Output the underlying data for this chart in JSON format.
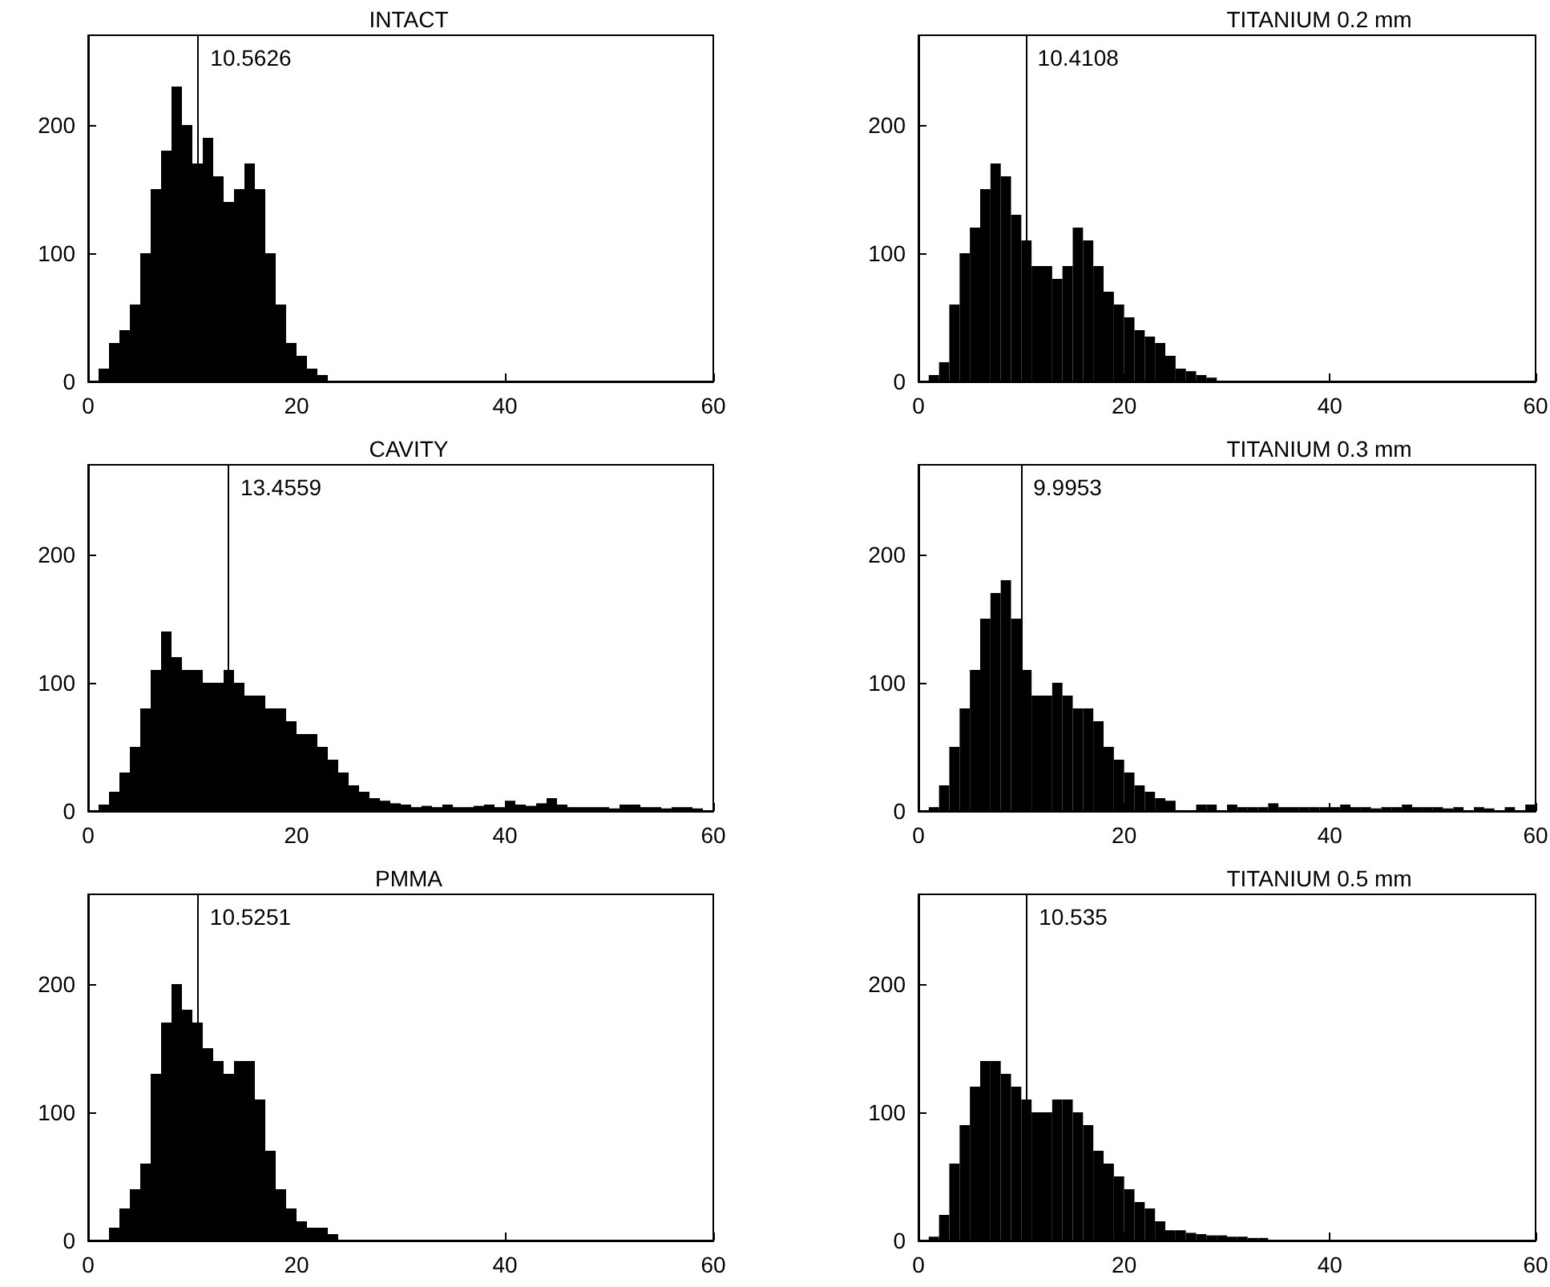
{
  "chart_data": [
    {
      "type": "histogram",
      "title": "INTACT",
      "bins": [
        0,
        1,
        2,
        3,
        4,
        5,
        6,
        7,
        8,
        9,
        10,
        11,
        12,
        13,
        14,
        15,
        16,
        17,
        18,
        19,
        20,
        21,
        22,
        23,
        24,
        25,
        26,
        27,
        28,
        29,
        30,
        31,
        32,
        33,
        34,
        35,
        36,
        37,
        38,
        39,
        40,
        41,
        42,
        43,
        44,
        45,
        46,
        47,
        48,
        49,
        50,
        51,
        52,
        53,
        54,
        55,
        56,
        57,
        58,
        59,
        60
      ],
      "values": [
        0,
        10,
        30,
        40,
        60,
        100,
        150,
        180,
        230,
        200,
        170,
        190,
        160,
        140,
        150,
        170,
        150,
        100,
        60,
        30,
        20,
        10,
        5,
        0,
        0,
        0,
        0,
        0,
        0,
        0,
        0,
        0,
        0,
        0,
        0,
        0,
        0,
        0,
        0,
        0,
        0,
        0,
        0,
        0,
        0,
        0,
        0,
        0,
        0,
        0,
        0,
        0,
        0,
        0,
        0,
        0,
        0,
        0,
        0,
        0
      ],
      "color": "#000000",
      "xlim": [
        0,
        60
      ],
      "xticks": [
        0,
        20,
        40,
        60
      ],
      "ylim": [
        0,
        270
      ],
      "yticks": [
        0,
        100,
        200
      ],
      "grid": false,
      "ref_lines": [
        {
          "axis": "x",
          "value": 10.5626,
          "label": "10.5626"
        }
      ]
    },
    {
      "type": "histogram",
      "title": "TITANIUM 0.2 mm",
      "bins": [
        0,
        1,
        2,
        3,
        4,
        5,
        6,
        7,
        8,
        9,
        10,
        11,
        12,
        13,
        14,
        15,
        16,
        17,
        18,
        19,
        20,
        21,
        22,
        23,
        24,
        25,
        26,
        27,
        28,
        29,
        30,
        31,
        32,
        33,
        34,
        35,
        36,
        37,
        38,
        39,
        40,
        41,
        42,
        43,
        44,
        45,
        46,
        47,
        48,
        49,
        50,
        51,
        52,
        53,
        54,
        55,
        56,
        57,
        58,
        59,
        60
      ],
      "values": [
        0,
        5,
        15,
        60,
        100,
        120,
        150,
        170,
        160,
        130,
        110,
        90,
        90,
        80,
        90,
        120,
        110,
        90,
        70,
        60,
        50,
        40,
        35,
        30,
        20,
        10,
        8,
        5,
        3,
        0,
        0,
        0,
        0,
        0,
        0,
        0,
        0,
        0,
        0,
        0,
        0,
        0,
        0,
        0,
        0,
        0,
        0,
        0,
        0,
        0,
        0,
        0,
        0,
        0,
        0,
        0,
        0,
        0,
        0,
        0
      ],
      "color": "#000000",
      "xlim": [
        0,
        60
      ],
      "xticks": [
        0,
        20,
        40,
        60
      ],
      "ylim": [
        0,
        270
      ],
      "yticks": [
        0,
        100,
        200
      ],
      "grid": false,
      "ref_lines": [
        {
          "axis": "x",
          "value": 10.4108,
          "label": "10.4108"
        }
      ]
    },
    {
      "type": "histogram",
      "title": "CAVITY",
      "bins": [
        0,
        1,
        2,
        3,
        4,
        5,
        6,
        7,
        8,
        9,
        10,
        11,
        12,
        13,
        14,
        15,
        16,
        17,
        18,
        19,
        20,
        21,
        22,
        23,
        24,
        25,
        26,
        27,
        28,
        29,
        30,
        31,
        32,
        33,
        34,
        35,
        36,
        37,
        38,
        39,
        40,
        41,
        42,
        43,
        44,
        45,
        46,
        47,
        48,
        49,
        50,
        51,
        52,
        53,
        54,
        55,
        56,
        57,
        58,
        59,
        60
      ],
      "values": [
        0,
        5,
        15,
        30,
        50,
        80,
        110,
        140,
        120,
        110,
        110,
        100,
        100,
        110,
        100,
        90,
        90,
        80,
        80,
        70,
        60,
        60,
        50,
        40,
        30,
        20,
        15,
        10,
        8,
        6,
        5,
        3,
        4,
        3,
        5,
        3,
        3,
        4,
        5,
        3,
        8,
        5,
        4,
        6,
        10,
        5,
        3,
        3,
        3,
        3,
        2,
        5,
        5,
        3,
        3,
        2,
        3,
        3,
        2,
        0
      ],
      "color": "#000000",
      "xlim": [
        0,
        60
      ],
      "xticks": [
        0,
        20,
        40,
        60
      ],
      "ylim": [
        0,
        270
      ],
      "yticks": [
        0,
        100,
        200
      ],
      "grid": false,
      "ref_lines": [
        {
          "axis": "x",
          "value": 13.4559,
          "label": "13.4559"
        }
      ]
    },
    {
      "type": "histogram",
      "title": "TITANIUM 0.3 mm",
      "bins": [
        0,
        1,
        2,
        3,
        4,
        5,
        6,
        7,
        8,
        9,
        10,
        11,
        12,
        13,
        14,
        15,
        16,
        17,
        18,
        19,
        20,
        21,
        22,
        23,
        24,
        25,
        26,
        27,
        28,
        29,
        30,
        31,
        32,
        33,
        34,
        35,
        36,
        37,
        38,
        39,
        40,
        41,
        42,
        43,
        44,
        45,
        46,
        47,
        48,
        49,
        50,
        51,
        52,
        53,
        54,
        55,
        56,
        57,
        58,
        59,
        60
      ],
      "values": [
        0,
        3,
        20,
        50,
        80,
        110,
        150,
        170,
        180,
        150,
        110,
        90,
        90,
        100,
        90,
        80,
        80,
        70,
        50,
        40,
        30,
        20,
        15,
        10,
        8,
        0,
        0,
        5,
        5,
        0,
        5,
        3,
        3,
        3,
        6,
        3,
        3,
        3,
        3,
        3,
        3,
        5,
        3,
        3,
        2,
        3,
        3,
        5,
        3,
        3,
        3,
        2,
        3,
        0,
        3,
        2,
        0,
        3,
        0,
        5
      ],
      "color": "#000000",
      "xlim": [
        0,
        60
      ],
      "xticks": [
        0,
        20,
        40,
        60
      ],
      "ylim": [
        0,
        270
      ],
      "yticks": [
        0,
        100,
        200
      ],
      "grid": false,
      "ref_lines": [
        {
          "axis": "x",
          "value": 9.9953,
          "label": "9.9953"
        }
      ]
    },
    {
      "type": "histogram",
      "title": "PMMA",
      "bins": [
        0,
        1,
        2,
        3,
        4,
        5,
        6,
        7,
        8,
        9,
        10,
        11,
        12,
        13,
        14,
        15,
        16,
        17,
        18,
        19,
        20,
        21,
        22,
        23,
        24,
        25,
        26,
        27,
        28,
        29,
        30,
        31,
        32,
        33,
        34,
        35,
        36,
        37,
        38,
        39,
        40,
        41,
        42,
        43,
        44,
        45,
        46,
        47,
        48,
        49,
        50,
        51,
        52,
        53,
        54,
        55,
        56,
        57,
        58,
        59,
        60
      ],
      "values": [
        0,
        0,
        10,
        25,
        40,
        60,
        130,
        170,
        200,
        180,
        170,
        150,
        140,
        130,
        140,
        140,
        110,
        70,
        40,
        25,
        15,
        10,
        10,
        5,
        0,
        0,
        0,
        0,
        0,
        0,
        0,
        0,
        0,
        0,
        0,
        0,
        0,
        0,
        0,
        0,
        0,
        0,
        0,
        0,
        0,
        0,
        0,
        0,
        0,
        0,
        0,
        0,
        0,
        0,
        0,
        0,
        0,
        0,
        0,
        0
      ],
      "color": "#000000",
      "xlim": [
        0,
        60
      ],
      "xticks": [
        0,
        20,
        40,
        60
      ],
      "ylim": [
        0,
        270
      ],
      "yticks": [
        0,
        100,
        200
      ],
      "grid": false,
      "ref_lines": [
        {
          "axis": "x",
          "value": 10.5251,
          "label": "10.5251"
        }
      ]
    },
    {
      "type": "histogram",
      "title": "TITANIUM 0.5 mm",
      "bins": [
        0,
        1,
        2,
        3,
        4,
        5,
        6,
        7,
        8,
        9,
        10,
        11,
        12,
        13,
        14,
        15,
        16,
        17,
        18,
        19,
        20,
        21,
        22,
        23,
        24,
        25,
        26,
        27,
        28,
        29,
        30,
        31,
        32,
        33,
        34,
        35,
        36,
        37,
        38,
        39,
        40,
        41,
        42,
        43,
        44,
        45,
        46,
        47,
        48,
        49,
        50,
        51,
        52,
        53,
        54,
        55,
        56,
        57,
        58,
        59,
        60
      ],
      "values": [
        0,
        3,
        20,
        60,
        90,
        120,
        140,
        140,
        130,
        120,
        110,
        100,
        100,
        110,
        110,
        100,
        90,
        70,
        60,
        50,
        40,
        30,
        25,
        15,
        8,
        8,
        6,
        5,
        4,
        4,
        3,
        3,
        2,
        2,
        0,
        0,
        0,
        0,
        0,
        0,
        0,
        0,
        0,
        0,
        0,
        0,
        0,
        0,
        0,
        0,
        0,
        0,
        0,
        0,
        0,
        0,
        0,
        0,
        0,
        0
      ],
      "color": "#000000",
      "xlim": [
        0,
        60
      ],
      "xticks": [
        0,
        20,
        40,
        60
      ],
      "ylim": [
        0,
        270
      ],
      "yticks": [
        0,
        100,
        200
      ],
      "grid": false,
      "ref_lines": [
        {
          "axis": "x",
          "value": 10.535,
          "label": "10.535"
        }
      ]
    }
  ]
}
